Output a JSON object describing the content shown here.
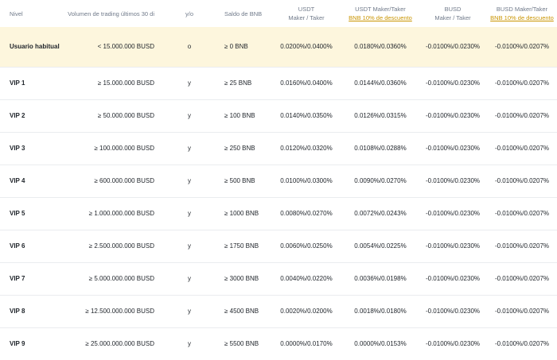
{
  "headers": {
    "level": "Nivel",
    "volume": "Volumen de trading últimos 30 di",
    "op": "y/o",
    "bnb_balance": "Saldo de BNB",
    "usdt_title": "USDT",
    "usdt_sub": "Maker / Taker",
    "usdt_disc_title": "USDT Maker/Taker",
    "usdt_disc_link": "BNB 10% de descuento",
    "busd_title": "BUSD",
    "busd_sub": "Maker / Taker",
    "busd_disc_title": "BUSD Maker/Taker",
    "busd_disc_link": "BNB 10% de descuento"
  },
  "rows": [
    {
      "level": "Usuario habitual",
      "volume": "< 15.000.000 BUSD",
      "op": "o",
      "bnb": "≥ 0 BNB",
      "usdt": "0.0200%/0.0400%",
      "usdt_disc": "0.0180%/0.0360%",
      "busd": "-0.0100%/0.0230%",
      "busd_disc": "-0.0100%/0.0207%"
    },
    {
      "level": "VIP 1",
      "volume": "≥ 15.000.000 BUSD",
      "op": "y",
      "bnb": "≥ 25 BNB",
      "usdt": "0.0160%/0.0400%",
      "usdt_disc": "0.0144%/0.0360%",
      "busd": "-0.0100%/0.0230%",
      "busd_disc": "-0.0100%/0.0207%"
    },
    {
      "level": "VIP 2",
      "volume": "≥ 50.000.000 BUSD",
      "op": "y",
      "bnb": "≥ 100 BNB",
      "usdt": "0.0140%/0.0350%",
      "usdt_disc": "0.0126%/0.0315%",
      "busd": "-0.0100%/0.0230%",
      "busd_disc": "-0.0100%/0.0207%"
    },
    {
      "level": "VIP 3",
      "volume": "≥ 100.000.000 BUSD",
      "op": "y",
      "bnb": "≥ 250 BNB",
      "usdt": "0.0120%/0.0320%",
      "usdt_disc": "0.0108%/0.0288%",
      "busd": "-0.0100%/0.0230%",
      "busd_disc": "-0.0100%/0.0207%"
    },
    {
      "level": "VIP 4",
      "volume": "≥ 600.000.000 BUSD",
      "op": "y",
      "bnb": "≥ 500 BNB",
      "usdt": "0.0100%/0.0300%",
      "usdt_disc": "0.0090%/0.0270%",
      "busd": "-0.0100%/0.0230%",
      "busd_disc": "-0.0100%/0.0207%"
    },
    {
      "level": "VIP 5",
      "volume": "≥ 1.000.000.000 BUSD",
      "op": "y",
      "bnb": "≥ 1000 BNB",
      "usdt": "0.0080%/0.0270%",
      "usdt_disc": "0.0072%/0.0243%",
      "busd": "-0.0100%/0.0230%",
      "busd_disc": "-0.0100%/0.0207%"
    },
    {
      "level": "VIP 6",
      "volume": "≥ 2.500.000.000 BUSD",
      "op": "y",
      "bnb": "≥ 1750 BNB",
      "usdt": "0.0060%/0.0250%",
      "usdt_disc": "0.0054%/0.0225%",
      "busd": "-0.0100%/0.0230%",
      "busd_disc": "-0.0100%/0.0207%"
    },
    {
      "level": "VIP 7",
      "volume": "≥ 5.000.000.000 BUSD",
      "op": "y",
      "bnb": "≥ 3000 BNB",
      "usdt": "0.0040%/0.0220%",
      "usdt_disc": "0.0036%/0.0198%",
      "busd": "-0.0100%/0.0230%",
      "busd_disc": "-0.0100%/0.0207%"
    },
    {
      "level": "VIP 8",
      "volume": "≥ 12.500.000.000 BUSD",
      "op": "y",
      "bnb": "≥ 4500 BNB",
      "usdt": "0.0020%/0.0200%",
      "usdt_disc": "0.0018%/0.0180%",
      "busd": "-0.0100%/0.0230%",
      "busd_disc": "-0.0100%/0.0207%"
    },
    {
      "level": "VIP 9",
      "volume": "≥ 25.000.000.000 BUSD",
      "op": "y",
      "bnb": "≥ 5500 BNB",
      "usdt": "0.0000%/0.0170%",
      "usdt_disc": "0.0000%/0.0153%",
      "busd": "-0.0100%/0.0230%",
      "busd_disc": "-0.0100%/0.0207%"
    }
  ],
  "colors": {
    "highlight_row": "#fdf6dd",
    "link": "#c99400",
    "header_text": "#707a8a"
  }
}
